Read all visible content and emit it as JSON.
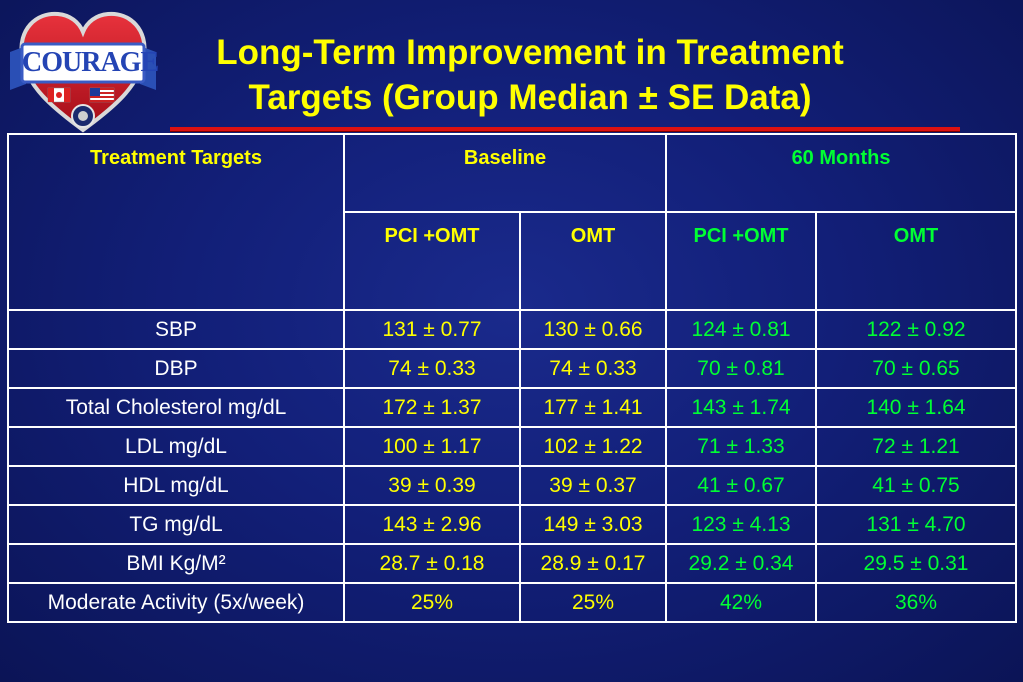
{
  "logo": {
    "text": "COURAGE"
  },
  "title": {
    "line1": "Long-Term Improvement in Treatment",
    "line2": "Targets (Group Median ± SE Data)"
  },
  "table": {
    "header": {
      "targets": "Treatment Targets",
      "baseline": "Baseline",
      "months": "60 Months",
      "sub": [
        "PCI +OMT",
        "OMT",
        "PCI +OMT",
        "OMT"
      ]
    },
    "rows": [
      {
        "label": "SBP",
        "values": [
          "131 ± 0.77",
          "130 ± 0.66",
          "124 ± 0.81",
          "122 ± 0.92"
        ]
      },
      {
        "label": "DBP",
        "values": [
          "74 ± 0.33",
          "74 ± 0.33",
          "70 ± 0.81",
          "70 ± 0.65"
        ]
      },
      {
        "label": "Total Cholesterol mg/dL",
        "values": [
          "172 ± 1.37",
          "177 ± 1.41",
          "143 ± 1.74",
          "140 ± 1.64"
        ]
      },
      {
        "label": "LDL mg/dL",
        "values": [
          "100 ± 1.17",
          "102 ± 1.22",
          "71 ± 1.33",
          "72 ± 1.21"
        ]
      },
      {
        "label": "HDL mg/dL",
        "values": [
          "39 ± 0.39",
          "39 ± 0.37",
          "41 ± 0.67",
          "41 ± 0.75"
        ]
      },
      {
        "label": "TG mg/dL",
        "values": [
          "143 ± 2.96",
          "149 ± 3.03",
          "123 ± 4.13",
          "131 ± 4.70"
        ]
      },
      {
        "label": "BMI Kg/M²",
        "values": [
          "28.7 ± 0.18",
          "28.9 ± 0.17",
          "29.2 ± 0.34",
          "29.5 ± 0.31"
        ]
      },
      {
        "label": "Moderate Activity (5x/week)",
        "values": [
          "25%",
          "25%",
          "42%",
          "36%"
        ]
      }
    ]
  },
  "colors": {
    "background": "#121f78",
    "title": "#ffff00",
    "baseline_values": "#ffff00",
    "month60_values": "#00ff33",
    "row_labels": "#ffffff",
    "rule": "#dd1111"
  }
}
